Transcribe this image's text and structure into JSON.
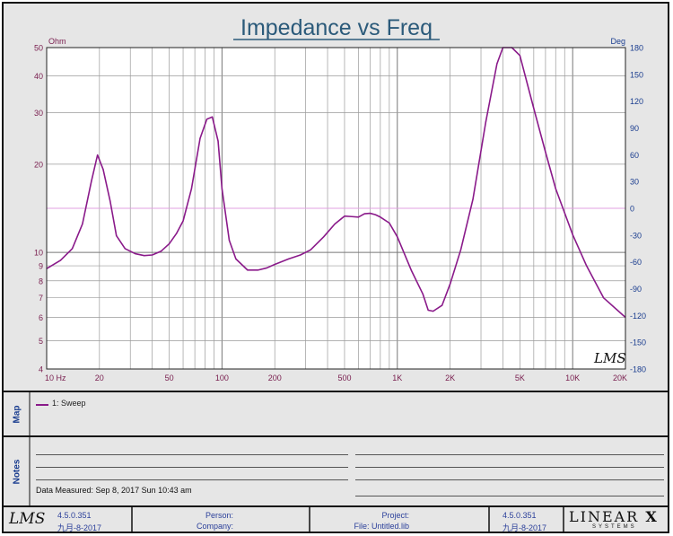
{
  "chart_data": {
    "type": "line",
    "title": "Impedance vs Freq",
    "x_scale": "log",
    "xlim": [
      10,
      20000
    ],
    "x_ticks": [
      {
        "value": 10,
        "label": "10  Hz"
      },
      {
        "value": 20,
        "label": "20"
      },
      {
        "value": 50,
        "label": "50"
      },
      {
        "value": 100,
        "label": "100"
      },
      {
        "value": 200,
        "label": "200"
      },
      {
        "value": 500,
        "label": "500"
      },
      {
        "value": 1000,
        "label": "1K"
      },
      {
        "value": 2000,
        "label": "2K"
      },
      {
        "value": 5000,
        "label": "5K"
      },
      {
        "value": 10000,
        "label": "10K"
      },
      {
        "value": 20000,
        "label": "20K"
      }
    ],
    "y_scale": "log",
    "ylim": [
      4,
      50
    ],
    "y_unit": "Ohm",
    "y_ticks": [
      {
        "value": 4,
        "label": "4"
      },
      {
        "value": 5,
        "label": "5"
      },
      {
        "value": 6,
        "label": "6"
      },
      {
        "value": 7,
        "label": "7"
      },
      {
        "value": 8,
        "label": "8"
      },
      {
        "value": 9,
        "label": "9"
      },
      {
        "value": 10,
        "label": "10"
      },
      {
        "value": 20,
        "label": "20"
      },
      {
        "value": 30,
        "label": "30"
      },
      {
        "value": 40,
        "label": "40"
      },
      {
        "value": 50,
        "label": "50"
      }
    ],
    "y2_unit": "Deg",
    "y2lim": [
      -180,
      180
    ],
    "y2_ticks": [
      180,
      150,
      120,
      90,
      60,
      30,
      0,
      -30,
      -60,
      -90,
      -120,
      -150,
      -180
    ],
    "grid": true,
    "logo_text": "LMS",
    "series": [
      {
        "name": "1: Sweep",
        "color": "#8a1a8a",
        "x": [
          10,
          12,
          14,
          16,
          18,
          19.5,
          21,
          23,
          25,
          28,
          32,
          36,
          40,
          45,
          50,
          55,
          60,
          67,
          75,
          82,
          88,
          95,
          100,
          110,
          120,
          140,
          160,
          180,
          200,
          240,
          280,
          320,
          380,
          440,
          500,
          550,
          600,
          650,
          700,
          750,
          800,
          900,
          1000,
          1200,
          1400,
          1500,
          1600,
          1800,
          2000,
          2300,
          2700,
          3200,
          3700,
          4000,
          4500,
          5000,
          6000,
          7000,
          8000,
          10000,
          12000,
          15000,
          20000
        ],
        "values": [
          8.8,
          9.4,
          10.3,
          12.5,
          17.5,
          21.5,
          19.2,
          15.0,
          11.4,
          10.3,
          9.9,
          9.75,
          9.8,
          10.1,
          10.7,
          11.6,
          12.8,
          16.5,
          24.5,
          28.5,
          29.0,
          24.0,
          16.5,
          11.0,
          9.5,
          8.7,
          8.7,
          8.85,
          9.1,
          9.5,
          9.8,
          10.2,
          11.3,
          12.5,
          13.3,
          13.25,
          13.2,
          13.55,
          13.6,
          13.45,
          13.2,
          12.6,
          11.3,
          8.7,
          7.2,
          6.35,
          6.3,
          6.6,
          7.8,
          10.2,
          15.2,
          28.0,
          44.0,
          50.0,
          50.0,
          47.0,
          31.0,
          22.0,
          16.5,
          11.5,
          9.0,
          7.0,
          6.0
        ]
      }
    ]
  },
  "notes": {
    "panel_title": "Notes",
    "date_measured": "Data Measured: Sep 8, 2017 Sun 10:43 am"
  },
  "map_panel": {
    "panel_title": "Map"
  },
  "footer": {
    "logo": "LMS",
    "version_left": "4.5.0.351",
    "date_left": "九月-8-2017",
    "person_label": "Person:",
    "company_label": "Company:",
    "project_label": "Project:",
    "file_label": "File: Untitled.lib",
    "version_right": "4.5.0.351",
    "date_right": "九月-8-2017",
    "brand_top": "LINEAR",
    "brand_mark": "X",
    "brand_bottom": "SYSTEMS"
  },
  "colors": {
    "curve": "#8a1a8a",
    "title": "#2b5a7a",
    "axis_labels_left": "#7a2050",
    "axis_labels_right": "#1a3d8f",
    "zero_line": "#e0a0e0",
    "grid": "#9a9a9a"
  }
}
